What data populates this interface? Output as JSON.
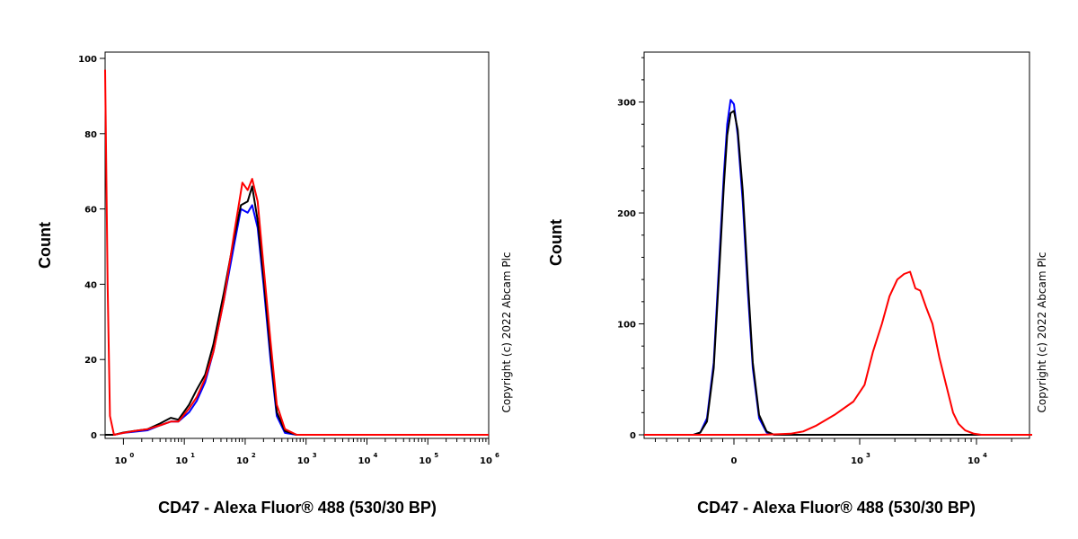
{
  "chart_data": [
    {
      "type": "line",
      "xlabel": "CD47 - Alexa Fluor® 488 (530/30 BP)",
      "ylabel": "Count",
      "copyright": "Copyright (c) 2022 Abcam Plc",
      "x_scale": "log",
      "xlim": [
        0.5,
        1000000
      ],
      "ylim": [
        0,
        100
      ],
      "y_ticks": [
        {
          "value": 0,
          "label": "0"
        },
        {
          "value": 20,
          "label": "20"
        },
        {
          "value": 40,
          "label": "40"
        },
        {
          "value": 60,
          "label": "60"
        },
        {
          "value": 80,
          "label": "80"
        },
        {
          "value": 100,
          "label": "100"
        }
      ],
      "x_ticks": [
        {
          "value": 1,
          "base": "10",
          "exp": "0"
        },
        {
          "value": 10,
          "base": "10",
          "exp": "1"
        },
        {
          "value": 100,
          "base": "10",
          "exp": "2"
        },
        {
          "value": 1000,
          "base": "10",
          "exp": "3"
        },
        {
          "value": 10000,
          "base": "10",
          "exp": "4"
        },
        {
          "value": 100000,
          "base": "10",
          "exp": "5"
        },
        {
          "value": 1000000,
          "base": "10",
          "exp": "6"
        }
      ],
      "series": [
        {
          "color": "#0000ff",
          "points": [
            [
              0.5,
              0
            ],
            [
              0.7,
              0
            ],
            [
              1,
              0.5
            ],
            [
              1.5,
              0.8
            ],
            [
              2.5,
              1.2
            ],
            [
              4,
              2.5
            ],
            [
              6,
              3.5
            ],
            [
              8,
              3.5
            ],
            [
              12,
              6
            ],
            [
              16,
              9
            ],
            [
              22,
              14
            ],
            [
              30,
              22
            ],
            [
              45,
              36
            ],
            [
              65,
              50
            ],
            [
              85,
              60
            ],
            [
              110,
              59
            ],
            [
              130,
              61
            ],
            [
              160,
              55
            ],
            [
              200,
              40
            ],
            [
              260,
              20
            ],
            [
              330,
              5
            ],
            [
              450,
              0.5
            ],
            [
              700,
              0
            ],
            [
              1000000,
              0
            ]
          ]
        },
        {
          "color": "#000000",
          "points": [
            [
              0.5,
              0
            ],
            [
              0.7,
              0
            ],
            [
              1,
              0.6
            ],
            [
              1.5,
              1
            ],
            [
              2.5,
              1.5
            ],
            [
              4,
              3
            ],
            [
              6,
              4.5
            ],
            [
              8,
              4
            ],
            [
              12,
              8
            ],
            [
              16,
              12
            ],
            [
              22,
              16
            ],
            [
              30,
              24
            ],
            [
              45,
              38
            ],
            [
              65,
              52
            ],
            [
              85,
              61
            ],
            [
              110,
              62
            ],
            [
              130,
              66
            ],
            [
              160,
              57
            ],
            [
              200,
              42
            ],
            [
              260,
              22
            ],
            [
              330,
              6
            ],
            [
              450,
              1
            ],
            [
              700,
              0
            ],
            [
              1000000,
              0
            ]
          ]
        },
        {
          "color": "#ff0000",
          "points": [
            [
              0.5,
              97
            ],
            [
              0.55,
              40
            ],
            [
              0.6,
              5
            ],
            [
              0.7,
              0
            ],
            [
              1,
              0.5
            ],
            [
              1.5,
              1
            ],
            [
              2.5,
              1.5
            ],
            [
              4,
              2.5
            ],
            [
              6,
              3.5
            ],
            [
              8,
              3.5
            ],
            [
              12,
              7
            ],
            [
              16,
              10
            ],
            [
              22,
              15
            ],
            [
              30,
              22
            ],
            [
              45,
              36
            ],
            [
              65,
              53
            ],
            [
              90,
              67
            ],
            [
              110,
              65
            ],
            [
              130,
              68
            ],
            [
              160,
              62
            ],
            [
              200,
              45
            ],
            [
              260,
              25
            ],
            [
              330,
              8
            ],
            [
              450,
              1.5
            ],
            [
              700,
              0
            ],
            [
              1000000,
              0
            ]
          ]
        }
      ]
    },
    {
      "type": "line",
      "xlabel": "CD47 - Alexa Fluor® 488 (530/30 BP)",
      "ylabel": "Count",
      "copyright": "Copyright (c) 2022 Abcam Plc",
      "x_scale": "biexponential",
      "xlim": [
        -800,
        30000
      ],
      "ylim": [
        0,
        345
      ],
      "y_ticks": [
        {
          "value": 0,
          "label": "0"
        },
        {
          "value": 100,
          "label": "100"
        },
        {
          "value": 200,
          "label": "200"
        },
        {
          "value": 300,
          "label": "300"
        }
      ],
      "x_ticks": [
        {
          "value": 0,
          "label": "0"
        },
        {
          "value": 1000,
          "base": "10",
          "exp": "3"
        },
        {
          "value": 10000,
          "base": "10",
          "exp": "4"
        }
      ],
      "series": [
        {
          "color": "#0000ff",
          "points": [
            [
              -800,
              0
            ],
            [
              -360,
              0
            ],
            [
              -300,
              2
            ],
            [
              -240,
              15
            ],
            [
              -180,
              65
            ],
            [
              -130,
              160
            ],
            [
              -90,
              235
            ],
            [
              -60,
              280
            ],
            [
              -30,
              302
            ],
            [
              0,
              298
            ],
            [
              30,
              270
            ],
            [
              70,
              210
            ],
            [
              110,
              130
            ],
            [
              150,
              60
            ],
            [
              200,
              15
            ],
            [
              260,
              2
            ],
            [
              320,
              0
            ],
            [
              30000,
              0
            ]
          ]
        },
        {
          "color": "#000000",
          "points": [
            [
              -800,
              0
            ],
            [
              -360,
              0
            ],
            [
              -300,
              2
            ],
            [
              -240,
              12
            ],
            [
              -180,
              60
            ],
            [
              -130,
              150
            ],
            [
              -90,
              225
            ],
            [
              -60,
              270
            ],
            [
              -30,
              290
            ],
            [
              0,
              292
            ],
            [
              30,
              275
            ],
            [
              70,
              220
            ],
            [
              110,
              140
            ],
            [
              150,
              65
            ],
            [
              200,
              18
            ],
            [
              260,
              3
            ],
            [
              320,
              0
            ],
            [
              30000,
              0
            ]
          ]
        },
        {
          "color": "#ff0000",
          "points": [
            [
              -800,
              0
            ],
            [
              200,
              0
            ],
            [
              350,
              0.5
            ],
            [
              450,
              1
            ],
            [
              550,
              3
            ],
            [
              650,
              8
            ],
            [
              800,
              18
            ],
            [
              950,
              30
            ],
            [
              1100,
              45
            ],
            [
              1300,
              75
            ],
            [
              1550,
              100
            ],
            [
              1800,
              125
            ],
            [
              2100,
              140
            ],
            [
              2400,
              145
            ],
            [
              2700,
              147
            ],
            [
              3000,
              132
            ],
            [
              3300,
              130
            ],
            [
              3700,
              115
            ],
            [
              4200,
              100
            ],
            [
              4800,
              70
            ],
            [
              5500,
              45
            ],
            [
              6300,
              20
            ],
            [
              7000,
              10
            ],
            [
              8000,
              4
            ],
            [
              9500,
              1
            ],
            [
              11000,
              0
            ],
            [
              30000,
              0
            ]
          ]
        }
      ]
    }
  ]
}
